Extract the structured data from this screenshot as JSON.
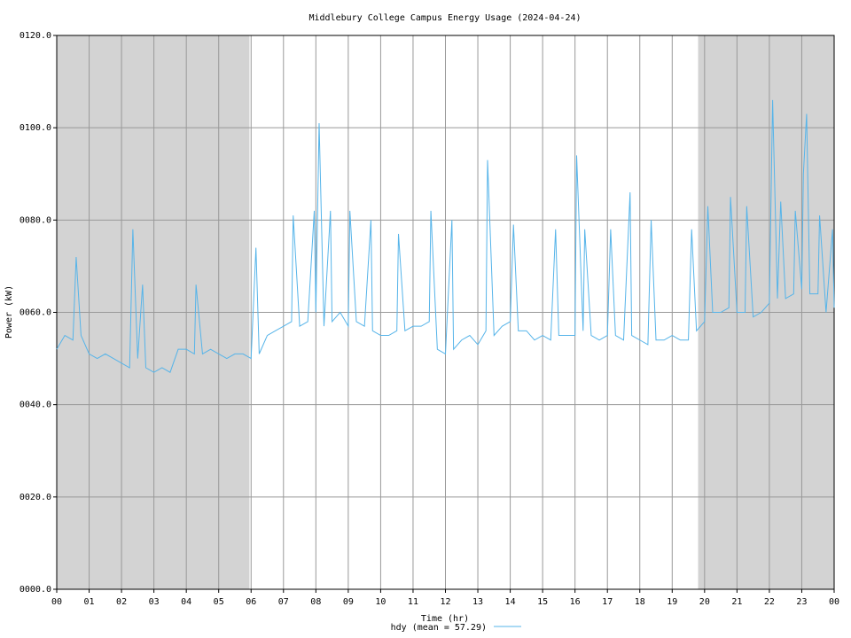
{
  "chart_data": {
    "type": "line",
    "title": "Middlebury College Campus Energy Usage (2024-04-24)",
    "xlabel": "Time (hr)",
    "ylabel": "Power (kW)",
    "xlim": [
      0,
      24
    ],
    "ylim": [
      0,
      120
    ],
    "xticks": [
      {
        "value": 0,
        "label": "00"
      },
      {
        "value": 1,
        "label": "01"
      },
      {
        "value": 2,
        "label": "02"
      },
      {
        "value": 3,
        "label": "03"
      },
      {
        "value": 4,
        "label": "04"
      },
      {
        "value": 5,
        "label": "05"
      },
      {
        "value": 6,
        "label": "06"
      },
      {
        "value": 7,
        "label": "07"
      },
      {
        "value": 8,
        "label": "08"
      },
      {
        "value": 9,
        "label": "09"
      },
      {
        "value": 10,
        "label": "10"
      },
      {
        "value": 11,
        "label": "11"
      },
      {
        "value": 12,
        "label": "12"
      },
      {
        "value": 13,
        "label": "13"
      },
      {
        "value": 14,
        "label": "14"
      },
      {
        "value": 15,
        "label": "15"
      },
      {
        "value": 16,
        "label": "16"
      },
      {
        "value": 17,
        "label": "17"
      },
      {
        "value": 18,
        "label": "18"
      },
      {
        "value": 19,
        "label": "19"
      },
      {
        "value": 20,
        "label": "20"
      },
      {
        "value": 21,
        "label": "21"
      },
      {
        "value": 22,
        "label": "22"
      },
      {
        "value": 23,
        "label": "23"
      },
      {
        "value": 24,
        "label": "00"
      }
    ],
    "yticks": [
      {
        "value": 0,
        "label": "0000.0"
      },
      {
        "value": 20,
        "label": "0020.0"
      },
      {
        "value": 40,
        "label": "0040.0"
      },
      {
        "value": 60,
        "label": "0060.0"
      },
      {
        "value": 80,
        "label": "0080.0"
      },
      {
        "value": 100,
        "label": "0100.0"
      },
      {
        "value": 120,
        "label": "0120.0"
      }
    ],
    "grid": true,
    "shaded": [
      [
        0,
        5.95
      ],
      [
        19.8,
        24
      ]
    ],
    "shade_color": "#d3d3d3",
    "legend": "bottom",
    "x": [
      0,
      0.25,
      0.5,
      0.6,
      0.75,
      1,
      1.25,
      1.5,
      1.75,
      2,
      2.25,
      2.35,
      2.5,
      2.65,
      2.75,
      3,
      3.25,
      3.5,
      3.75,
      4,
      4.25,
      4.3,
      4.5,
      4.75,
      5,
      5.25,
      5.5,
      5.75,
      6,
      6.15,
      6.25,
      6.5,
      6.75,
      7,
      7.25,
      7.3,
      7.5,
      7.75,
      7.95,
      8,
      8.1,
      8.25,
      8.45,
      8.5,
      8.75,
      9,
      9.05,
      9.25,
      9.5,
      9.7,
      9.75,
      10,
      10.25,
      10.5,
      10.55,
      10.75,
      11,
      11.25,
      11.5,
      11.55,
      11.75,
      12,
      12.2,
      12.25,
      12.5,
      12.75,
      13,
      13.25,
      13.3,
      13.5,
      13.75,
      14,
      14.1,
      14.25,
      14.5,
      14.75,
      15,
      15.25,
      15.4,
      15.5,
      15.75,
      16,
      16.05,
      16.25,
      16.3,
      16.5,
      16.75,
      17,
      17.1,
      17.25,
      17.5,
      17.7,
      17.75,
      18,
      18.25,
      18.35,
      18.5,
      18.75,
      19,
      19.25,
      19.5,
      19.6,
      19.75,
      20,
      20.1,
      20.25,
      20.5,
      20.75,
      20.8,
      21,
      21.25,
      21.3,
      21.5,
      21.75,
      22,
      22.1,
      22.25,
      22.35,
      22.5,
      22.75,
      22.8,
      23,
      23.05,
      23.15,
      23.25,
      23.5,
      23.55,
      23.75,
      23.95,
      24
    ],
    "series": [
      {
        "name": "hdy (mean = 57.29)",
        "color": "#56b4e9",
        "values": [
          52,
          55,
          54,
          72,
          55,
          51,
          50,
          51,
          50,
          49,
          48,
          78,
          50,
          66,
          48,
          47,
          48,
          47,
          52,
          52,
          51,
          66,
          51,
          52,
          51,
          50,
          51,
          51,
          50,
          74,
          51,
          55,
          56,
          57,
          58,
          81,
          57,
          58,
          82,
          60,
          101,
          57,
          82,
          58,
          60,
          57,
          82,
          58,
          57,
          80,
          56,
          55,
          55,
          56,
          77,
          56,
          57,
          57,
          58,
          82,
          52,
          51,
          80,
          52,
          54,
          55,
          53,
          56,
          93,
          55,
          57,
          58,
          79,
          56,
          56,
          54,
          55,
          54,
          78,
          55,
          55,
          55,
          94,
          56,
          78,
          55,
          54,
          55,
          78,
          55,
          54,
          86,
          55,
          54,
          53,
          80,
          54,
          54,
          55,
          54,
          54,
          78,
          56,
          58,
          83,
          60,
          60,
          61,
          85,
          60,
          60,
          83,
          59,
          60,
          62,
          106,
          63,
          84,
          63,
          64,
          82,
          65,
          90,
          103,
          64,
          64,
          81,
          60,
          78,
          61
        ]
      }
    ]
  }
}
